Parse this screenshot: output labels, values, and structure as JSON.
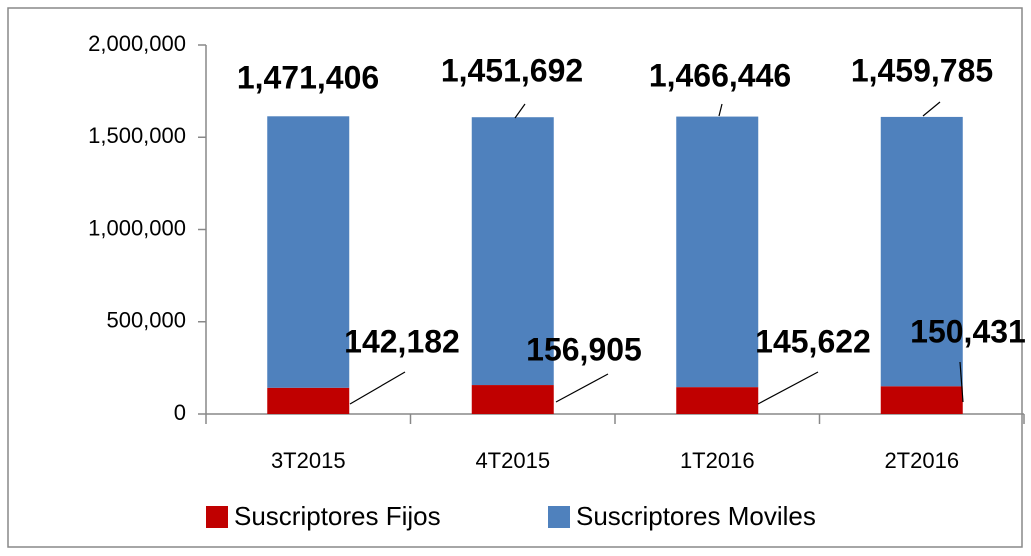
{
  "chart_data": {
    "type": "stacked_bar",
    "categories": [
      "3T2015",
      "4T2015",
      "1T2016",
      "2T2016"
    ],
    "series": [
      {
        "name": "Suscriptores Fijos",
        "color": "#c00000",
        "values": [
          142182,
          156905,
          145622,
          150431
        ],
        "value_labels": [
          "142,182",
          "156,905",
          "145,622",
          "150,431"
        ]
      },
      {
        "name": "Suscriptores Moviles",
        "color": "#4f81bd",
        "values": [
          1471406,
          1451692,
          1466446,
          1459785
        ],
        "value_labels": [
          "1,471,406",
          "1,451,692",
          "1,466,446",
          "1,459,785"
        ]
      }
    ],
    "ylim": [
      0,
      2000000
    ],
    "yticks": [
      0,
      {
        "value": 500000,
        "label": "500,000"
      },
      {
        "value": 1000000,
        "label": "1,000,000"
      },
      {
        "value": 1500000,
        "label": "1,500,000"
      },
      {
        "value": 2000000,
        "label": "2,000,000"
      }
    ],
    "legend": "bottom"
  }
}
